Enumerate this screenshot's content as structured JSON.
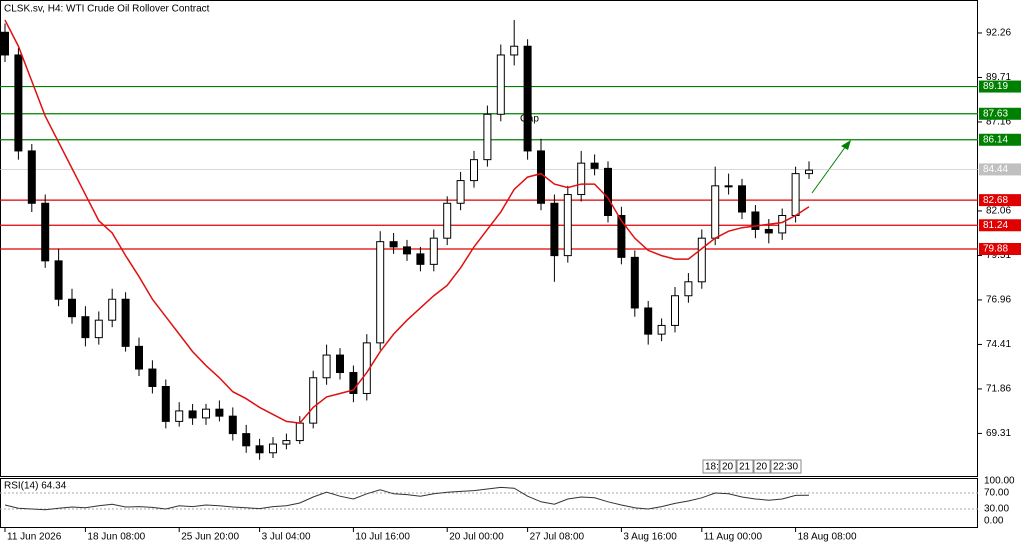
{
  "chart_data": {
    "type": "candlestick",
    "title": "CLSK.sv, H4:  WTI Crude Oil Rollover Contract",
    "categories": [
      "11 Jun 2026",
      null,
      null,
      null,
      null,
      null,
      "18 Jun 08:00",
      null,
      null,
      null,
      null,
      null,
      null,
      "25 Jun 20:00",
      null,
      null,
      null,
      null,
      null,
      "3 Jul 04:00",
      null,
      null,
      null,
      null,
      null,
      null,
      "10 Jul 16:00",
      null,
      null,
      null,
      null,
      null,
      null,
      "20 Jul 00:00",
      null,
      null,
      null,
      null,
      null,
      "27 Jul 08:00",
      null,
      null,
      null,
      null,
      null,
      null,
      "3 Aug 16:00",
      null,
      null,
      null,
      null,
      null,
      "11 Aug 00:00",
      null,
      null,
      null,
      null,
      null,
      null,
      "18 Aug 08:00",
      null
    ],
    "open": [
      92.3,
      91.0,
      85.5,
      82.5,
      79.2,
      77.0,
      76.0,
      74.8,
      75.8,
      77.0,
      74.3,
      73.0,
      72.0,
      70.0,
      70.6,
      70.2,
      70.7,
      70.3,
      69.3,
      68.6,
      68.2,
      68.7,
      68.9,
      69.9,
      72.5,
      73.8,
      72.8,
      71.6,
      74.5,
      80.3,
      80.0,
      79.6,
      79.0,
      80.5,
      82.5,
      83.8,
      85.0,
      87.6,
      91.0,
      91.5,
      85.5,
      82.5,
      79.5,
      83.0,
      84.8,
      84.5,
      81.8,
      79.4,
      76.5,
      75.0,
      75.5,
      77.2,
      78.0,
      80.5,
      83.5,
      83.5,
      82.0,
      81.0,
      80.8,
      81.8,
      84.2
    ],
    "high": [
      92.8,
      91.4,
      85.9,
      83.0,
      79.9,
      77.6,
      76.6,
      76.3,
      77.6,
      77.4,
      74.8,
      73.5,
      72.4,
      71.1,
      71.0,
      71.0,
      71.2,
      70.8,
      69.8,
      69.0,
      69.1,
      69.3,
      70.3,
      72.9,
      74.4,
      74.2,
      73.2,
      75.0,
      80.9,
      80.8,
      80.4,
      80.0,
      81.0,
      82.9,
      84.3,
      85.5,
      88.1,
      91.6,
      93.0,
      91.9,
      86.2,
      83.0,
      83.5,
      85.5,
      85.3,
      84.9,
      82.3,
      79.8,
      76.9,
      75.9,
      77.7,
      78.5,
      81.0,
      84.6,
      84.2,
      83.9,
      82.4,
      81.6,
      82.2,
      84.6,
      84.9
    ],
    "low": [
      90.6,
      85.0,
      82.0,
      78.8,
      76.6,
      75.6,
      74.3,
      74.4,
      75.4,
      74.0,
      72.6,
      71.6,
      69.6,
      69.7,
      69.8,
      69.8,
      70.0,
      68.9,
      68.2,
      67.8,
      67.9,
      68.4,
      68.7,
      69.6,
      72.1,
      72.4,
      71.1,
      71.2,
      74.1,
      79.6,
      79.2,
      78.6,
      78.6,
      80.1,
      82.1,
      83.4,
      84.6,
      87.2,
      90.4,
      85.0,
      82.1,
      78.0,
      79.1,
      82.6,
      84.1,
      81.4,
      79.0,
      76.0,
      74.4,
      74.6,
      75.1,
      76.8,
      77.6,
      80.1,
      83.0,
      81.6,
      80.5,
      80.2,
      80.4,
      81.4,
      83.9
    ],
    "close": [
      91.0,
      85.5,
      82.5,
      79.2,
      77.0,
      76.0,
      74.8,
      75.8,
      77.0,
      74.3,
      73.0,
      72.0,
      70.0,
      70.6,
      70.2,
      70.7,
      70.3,
      69.3,
      68.6,
      68.2,
      68.7,
      68.9,
      69.9,
      72.5,
      73.8,
      72.8,
      71.6,
      74.5,
      80.3,
      80.0,
      79.6,
      79.0,
      80.5,
      82.5,
      83.8,
      85.0,
      87.6,
      91.0,
      91.5,
      85.5,
      82.5,
      79.5,
      83.0,
      84.8,
      84.5,
      81.8,
      79.4,
      76.5,
      75.0,
      75.5,
      77.2,
      78.0,
      80.5,
      83.5,
      83.5,
      82.0,
      81.0,
      80.8,
      81.8,
      84.2,
      84.4
    ],
    "ma": {
      "color": "#e01010",
      "values": [
        93.0,
        91.5,
        89.5,
        87.5,
        86.0,
        84.5,
        83.0,
        81.5,
        80.8,
        79.5,
        78.3,
        77.0,
        76.0,
        75.0,
        74.0,
        73.2,
        72.5,
        71.7,
        71.3,
        70.8,
        70.4,
        70.0,
        69.9,
        70.8,
        71.4,
        71.6,
        71.8,
        72.8,
        74.0,
        75.0,
        75.8,
        76.5,
        77.2,
        77.8,
        78.8,
        80.0,
        81.0,
        82.0,
        83.3,
        84.0,
        84.2,
        83.6,
        83.4,
        83.6,
        83.6,
        82.8,
        81.5,
        80.5,
        79.8,
        79.5,
        79.3,
        79.3,
        79.9,
        80.5,
        80.9,
        81.1,
        81.2,
        81.3,
        81.4,
        81.8,
        82.3
      ]
    },
    "ylim": [
      66.87,
      94.15
    ],
    "yticks": [
      92.26,
      89.71,
      87.16,
      82.06,
      79.51,
      76.96,
      74.41,
      71.86,
      69.31
    ],
    "grid": false,
    "levels": [
      {
        "value": 89.19,
        "color": "#008000"
      },
      {
        "value": 87.63,
        "color": "#008000"
      },
      {
        "value": 86.14,
        "color": "#008000"
      },
      {
        "value": 82.68,
        "color": "#e00000"
      },
      {
        "value": 81.24,
        "color": "#e00000"
      },
      {
        "value": 79.88,
        "color": "#e00000"
      }
    ],
    "last_price": {
      "value": 84.44,
      "color": "#c0c0c0"
    },
    "annotation": "Gap",
    "period_marks": [
      "18:",
      "20",
      "21",
      "20",
      "22:30"
    ],
    "rsi": {
      "label": "RSI(14) 64.34",
      "ylim": [
        0,
        100
      ],
      "yticks": [
        {
          "value": 100,
          "label": "100.00"
        },
        {
          "value": 70,
          "label": "70.00"
        },
        {
          "value": 30,
          "label": "30.00"
        },
        {
          "value": 0,
          "label": "0.00"
        }
      ],
      "values": [
        40,
        32,
        30,
        28,
        32,
        35,
        33,
        38,
        42,
        35,
        36,
        34,
        30,
        38,
        36,
        40,
        38,
        35,
        33,
        31,
        36,
        38,
        45,
        60,
        72,
        62,
        55,
        68,
        78,
        68,
        66,
        62,
        68,
        72,
        74,
        76,
        80,
        84,
        82,
        62,
        48,
        42,
        55,
        60,
        58,
        48,
        40,
        33,
        30,
        36,
        44,
        50,
        58,
        70,
        68,
        60,
        55,
        52,
        55,
        64,
        64.34
      ]
    }
  }
}
